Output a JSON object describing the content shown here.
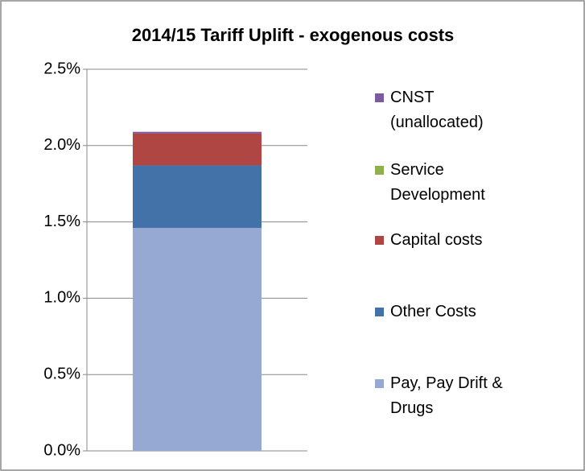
{
  "chart_data": {
    "type": "stacked_bar",
    "title": "2014/15 Tariff Uplift - exogenous costs",
    "categories": [
      null
    ],
    "series": [
      {
        "name": "Pay, Pay Drift & Drugs",
        "color": "#95a9d3",
        "values": [
          1.46
        ]
      },
      {
        "name": "Other Costs",
        "color": "#4372a8",
        "values": [
          0.41
        ]
      },
      {
        "name": "Capital costs",
        "color": "#b04643",
        "values": [
          0.21
        ]
      },
      {
        "name": "Service Development",
        "color": "#8fb04e",
        "values": [
          0
        ]
      },
      {
        "name": "CNST (unallocated)",
        "color": "#7b5ba0",
        "values": [
          0.01
        ]
      }
    ],
    "ylim": [
      0,
      2.5
    ],
    "yticks": [
      {
        "value": 0,
        "label": "0.0%"
      },
      {
        "value": 0.5,
        "label": "0.5%"
      },
      {
        "value": 1,
        "label": "1.0%"
      },
      {
        "value": 1.5,
        "label": "1.5%"
      },
      {
        "value": 2,
        "label": "2.0%"
      },
      {
        "value": 2.5,
        "label": "2.5%"
      }
    ],
    "grid": true,
    "legend": "right"
  }
}
